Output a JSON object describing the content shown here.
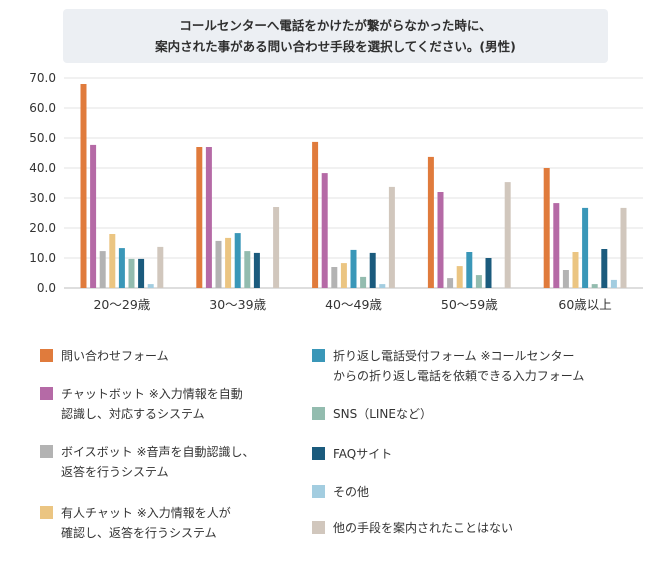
{
  "chart_data": {
    "type": "bar",
    "title": [
      "コールセンターへ電話をかけたが繋がらなかった時に、",
      "案内された事がある問い合わせ手段を選択してください。(男性)"
    ],
    "xlabel": "",
    "ylabel": "",
    "ylim": [
      0,
      70
    ],
    "yticks": [
      "0.0",
      "10.0",
      "20.0",
      "30.0",
      "40.0",
      "50.0",
      "60.0",
      "70.0"
    ],
    "grid": true,
    "legend_position": "bottom",
    "categories": [
      "20〜29歳",
      "30〜39歳",
      "40〜49歳",
      "50〜59歳",
      "60歳以上"
    ],
    "series": [
      {
        "name": "問い合わせフォーム",
        "color": "#e07b3c",
        "values": [
          68.0,
          47.0,
          48.7,
          43.7,
          40.0
        ]
      },
      {
        "name": "チャットボット ※入力情報を自動\n認識し、対応するシステム",
        "color": "#b56aa6",
        "values": [
          47.7,
          47.0,
          38.3,
          32.0,
          28.3
        ]
      },
      {
        "name": "ボイスボット ※音声を自動認識し、\n返答を行うシステム",
        "color": "#b3b3b3",
        "values": [
          12.3,
          15.7,
          7.0,
          3.3,
          6.0
        ]
      },
      {
        "name": "有人チャット ※入力情報を人が\n確認し、返答を行うシステム",
        "color": "#ebc582",
        "values": [
          18.0,
          16.7,
          8.3,
          7.3,
          12.0
        ]
      },
      {
        "name": "折り返し電話受付フォーム ※コールセンター\nからの折り返し電話を依頼できる入力フォーム",
        "color": "#3a97b8",
        "values": [
          13.3,
          18.3,
          12.7,
          12.0,
          26.7
        ]
      },
      {
        "name": "SNS（LINEなど）",
        "color": "#93bcaf",
        "values": [
          9.7,
          12.3,
          3.7,
          4.3,
          1.3
        ]
      },
      {
        "name": "FAQサイト",
        "color": "#1b5b7d",
        "values": [
          9.7,
          11.7,
          11.7,
          10.0,
          13.0
        ]
      },
      {
        "name": "その他",
        "color": "#a3cde0",
        "values": [
          1.3,
          0.0,
          1.3,
          0.0,
          2.7
        ]
      },
      {
        "name": "他の手段を案内されたことはない",
        "color": "#d1c7bd",
        "values": [
          13.7,
          27.0,
          33.7,
          35.3,
          26.7
        ]
      }
    ]
  }
}
